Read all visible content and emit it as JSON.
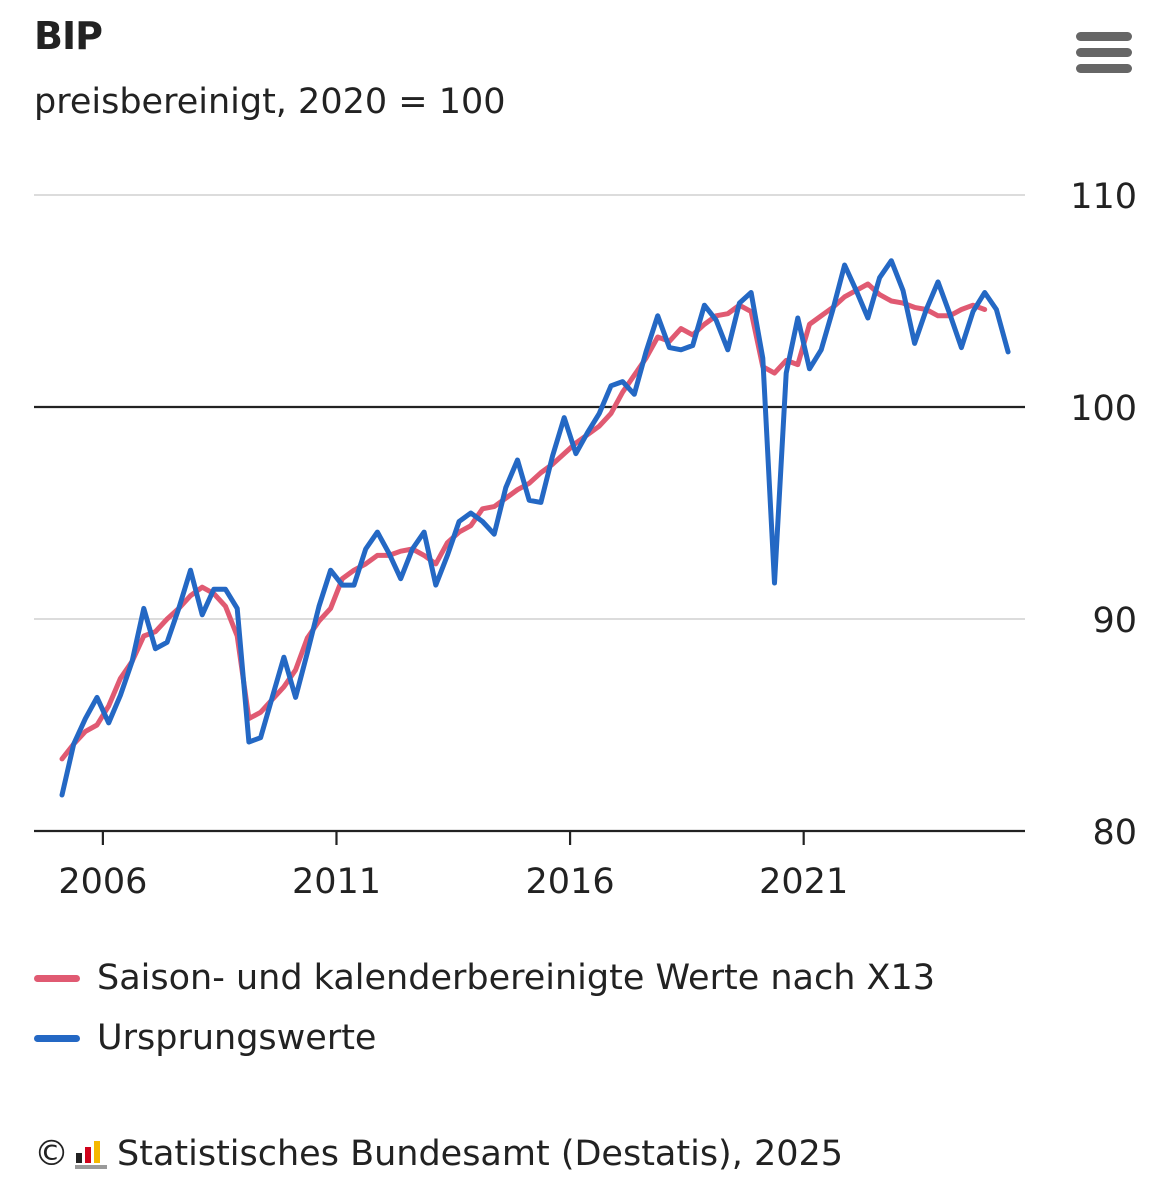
{
  "header": {
    "title": "BIP",
    "subtitle": "preisbereinigt, 2020 = 100",
    "menu_icon": "hamburger-menu-icon"
  },
  "legend": {
    "items": [
      {
        "label": "Saison- und kalenderbereinigte Werte nach X13",
        "color": "#e05a72"
      },
      {
        "label": "Ursprungswerte",
        "color": "#2468c4"
      }
    ]
  },
  "credits": {
    "copyright": "©",
    "text": "Statistisches Bundesamt (Destatis), 2025",
    "logo_icon": "destatis-logo-icon"
  },
  "chart_data": {
    "type": "line",
    "title": "BIP",
    "subtitle": "preisbereinigt, 2020 = 100",
    "x_start": "2005-Q1",
    "frequency": "quarterly",
    "x_ticks": [
      "2006",
      "2011",
      "2016",
      "2021"
    ],
    "y_ticks": [
      80,
      90,
      100,
      110
    ],
    "ylim": [
      80,
      110
    ],
    "reference_line": 100,
    "grid": true,
    "y_axis_position": "right",
    "legend_position": "bottom",
    "series": [
      {
        "name": "Saison- und kalenderbereinigte Werte nach X13",
        "color": "#e05a72",
        "values": [
          83.4,
          84.1,
          84.7,
          85.0,
          85.9,
          87.2,
          88.0,
          89.2,
          89.4,
          90.0,
          90.5,
          91.1,
          91.5,
          91.2,
          90.6,
          89.2,
          85.3,
          85.6,
          86.2,
          86.8,
          87.6,
          89.1,
          89.9,
          90.5,
          91.9,
          92.3,
          92.6,
          93.0,
          93.0,
          93.2,
          93.3,
          93.0,
          92.6,
          93.6,
          94.1,
          94.4,
          95.2,
          95.3,
          95.7,
          96.1,
          96.4,
          96.9,
          97.3,
          97.8,
          98.3,
          98.7,
          99.1,
          99.7,
          100.7,
          101.5,
          102.3,
          103.3,
          103.1,
          103.7,
          103.4,
          103.9,
          104.3,
          104.4,
          104.8,
          104.5,
          101.9,
          101.6,
          102.2,
          102.0,
          103.9,
          104.3,
          104.7,
          105.2,
          105.5,
          105.8,
          105.3,
          105.0,
          104.9,
          104.7,
          104.6,
          104.3,
          104.3,
          104.6,
          104.8,
          104.6
        ]
      },
      {
        "name": "Ursprungswerte",
        "color": "#2468c4",
        "values": [
          81.7,
          84.1,
          85.3,
          86.3,
          85.1,
          86.4,
          88.0,
          90.5,
          88.6,
          88.9,
          90.5,
          92.3,
          90.2,
          91.4,
          91.4,
          90.5,
          84.2,
          84.4,
          86.3,
          88.2,
          86.3,
          88.4,
          90.6,
          92.3,
          91.6,
          91.6,
          93.3,
          94.1,
          93.1,
          91.9,
          93.3,
          94.1,
          91.6,
          93.0,
          94.6,
          95.0,
          94.6,
          94.0,
          96.2,
          97.5,
          95.6,
          95.5,
          97.7,
          99.5,
          97.8,
          98.8,
          99.7,
          101.0,
          101.2,
          100.6,
          102.6,
          104.3,
          102.8,
          102.7,
          102.9,
          104.8,
          104.1,
          102.7,
          104.9,
          105.4,
          102.3,
          91.7,
          101.6,
          104.2,
          101.8,
          102.7,
          104.6,
          106.7,
          105.5,
          104.2,
          106.1,
          106.9,
          105.5,
          103.0,
          104.6,
          105.9,
          104.4,
          102.8,
          104.5,
          105.4,
          104.6,
          102.6
        ]
      }
    ]
  }
}
